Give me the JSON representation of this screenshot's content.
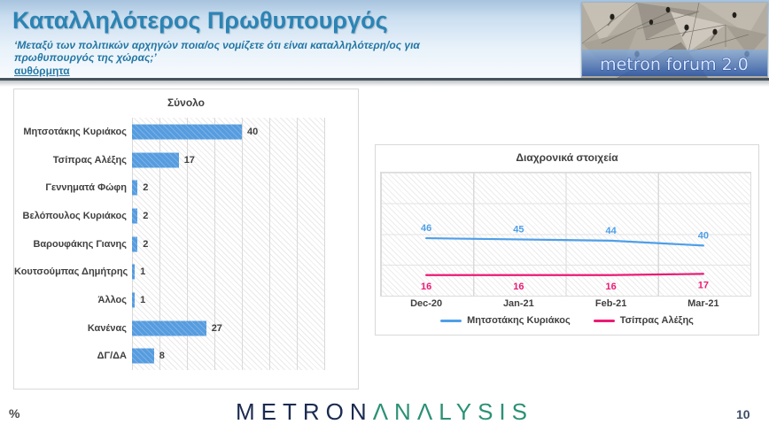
{
  "header": {
    "title": "Καταλληλότερος Πρωθυπουργός",
    "subtitle": "‘Μεταξύ των πολιτικών αρχηγών ποια/ος νομίζετε ότι είναι καταλληλότερη/ος για πρωθυπουργός της χώρας;’",
    "note": "αυθόρμητα",
    "logo_text": "metron forum 2.0"
  },
  "chart_data": [
    {
      "type": "bar",
      "orientation": "horizontal",
      "title": "Σύνολο",
      "categories": [
        "Μητσοτάκης Κυριάκος",
        "Τσίπρας Αλέξης",
        "Γεννηματά Φώφη",
        "Βελόπουλος Κυριάκος",
        "Βαρουφάκης Γιανης",
        "Κουτσούμπας Δημήτρης",
        "Άλλος",
        "Κανένας",
        "ΔΓ/ΔΑ"
      ],
      "values": [
        40,
        17,
        2,
        2,
        2,
        1,
        1,
        27,
        8
      ],
      "xlim": [
        0,
        70
      ],
      "gridline_step": 10,
      "bar_color": "#569cdf",
      "grid": "on"
    },
    {
      "type": "line",
      "title": "Διαχρονικά στοιχεία",
      "x": [
        "Dec-20",
        "Jan-21",
        "Feb-21",
        "Mar-21"
      ],
      "series": [
        {
          "name": "Μητσοτάκης Κυριάκος",
          "values": [
            46,
            45,
            44,
            40
          ],
          "color": "#4f9fe8"
        },
        {
          "name": "Τσίπρας Αλέξης",
          "values": [
            16,
            16,
            16,
            17
          ],
          "color": "#ec1a75"
        }
      ],
      "ylim": [
        0,
        100
      ],
      "grid": "on",
      "legend_position": "bottom"
    }
  ],
  "footer": {
    "percent_label": "%",
    "brand_part1": "METRON",
    "brand_part2": "ΛNΛLYSIS",
    "page_number": "10"
  }
}
